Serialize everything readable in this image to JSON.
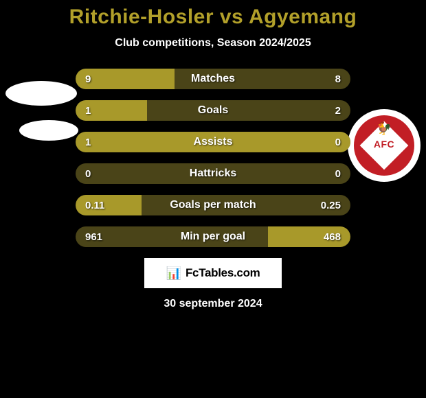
{
  "title": "Ritchie-Hosler vs Agyemang",
  "title_color": "#b2a02a",
  "subtitle": "Club competitions, Season 2024/2025",
  "date": "30 september 2024",
  "watermark": {
    "text": "FcTables.com",
    "icon": "📊"
  },
  "team_right_badge": {
    "text": "AFC"
  },
  "bars": {
    "track_color": "#4a4418",
    "fill_color": "#a8992a",
    "rows": [
      {
        "label": "Matches",
        "left_val": "9",
        "right_val": "8",
        "left_pct": 36,
        "right_pct": 0
      },
      {
        "label": "Goals",
        "left_val": "1",
        "right_val": "2",
        "left_pct": 26,
        "right_pct": 0
      },
      {
        "label": "Assists",
        "left_val": "1",
        "right_val": "0",
        "left_pct": 100,
        "right_pct": 0
      },
      {
        "label": "Hattricks",
        "left_val": "0",
        "right_val": "0",
        "left_pct": 0,
        "right_pct": 0
      },
      {
        "label": "Goals per match",
        "left_val": "0.11",
        "right_val": "0.25",
        "left_pct": 24,
        "right_pct": 0
      },
      {
        "label": "Min per goal",
        "left_val": "961",
        "right_val": "468",
        "left_pct": 0,
        "right_pct": 30
      }
    ]
  }
}
